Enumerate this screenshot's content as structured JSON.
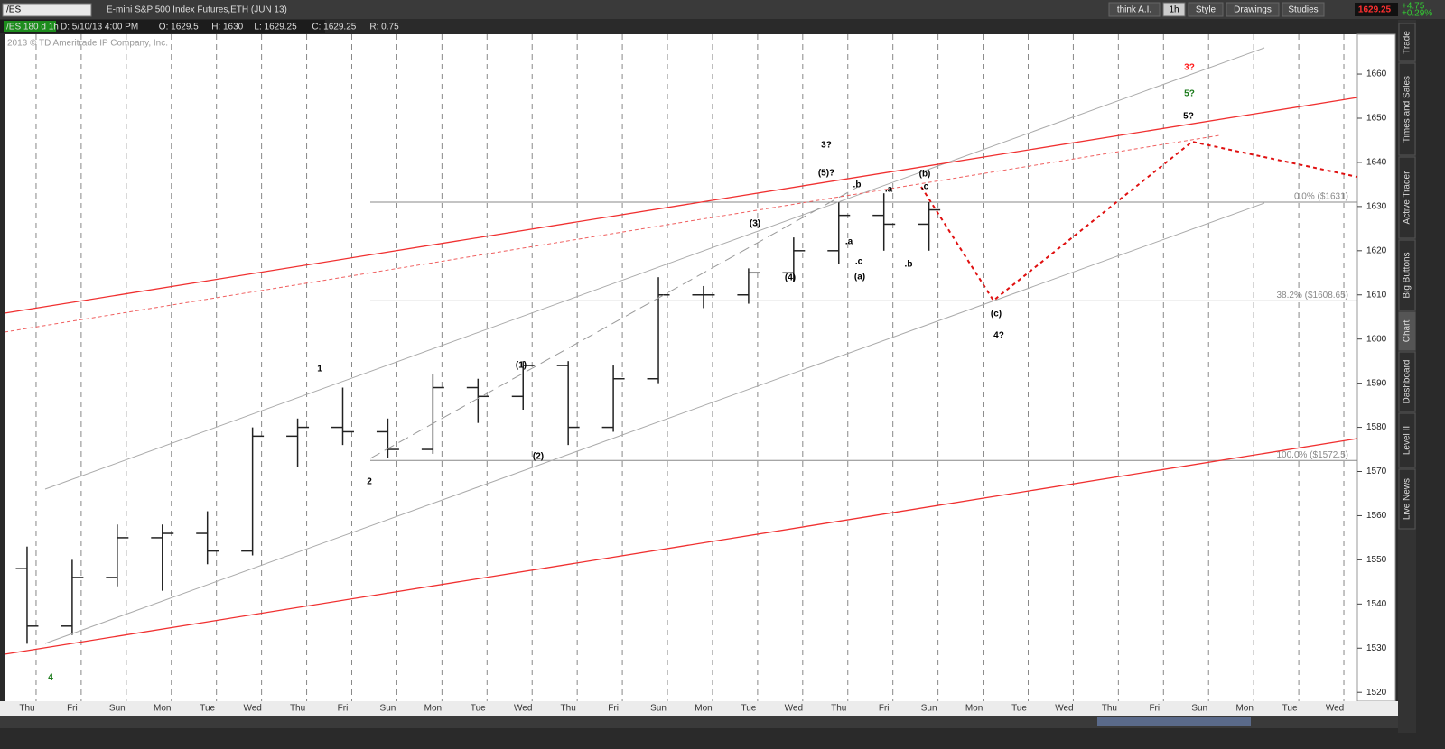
{
  "toolbar": {
    "symbol": "/ES",
    "description": "E-mini S&P 500 Index Futures,ETH (JUN 13)",
    "buttons": [
      "think A.I.",
      "1h",
      "Style",
      "Drawings",
      "Studies"
    ],
    "last": "1629.25",
    "change": "+4.75",
    "change_pct": "+0.29%"
  },
  "info_bar": [
    "/ES 180 d 1h",
    "D: 5/10/13 4:00 PM",
    "O: 1629.5",
    "H: 1630",
    "L: 1629.25",
    "C: 1629.25",
    "R: 0.75"
  ],
  "copyright": "2013 © TD Ameritrade IP Company, Inc.",
  "side_tabs": [
    "Trade",
    "Times and Sales",
    "Active Trader",
    "Big Buttons",
    "Chart",
    "Dashboard",
    "Level II",
    "Live News"
  ],
  "chart_data": {
    "type": "ohlc",
    "color": "#222222",
    "categories": [
      "Thu",
      "Fri",
      "Sun",
      "Mon",
      "Tue",
      "Wed",
      "Thu",
      "Fri",
      "Sun",
      "Mon",
      "Tue",
      "Wed",
      "Thu",
      "Fri",
      "Sun",
      "Mon",
      "Tue",
      "Wed",
      "Thu",
      "Fri",
      "Sun",
      "Mon",
      "Tue",
      "Wed",
      "Thu",
      "Fri",
      "Sun",
      "Mon",
      "Tue",
      "Wed"
    ],
    "open": [
      1548,
      1535,
      1546,
      1555,
      1556,
      1552,
      1578,
      1580,
      1579,
      1575,
      1589,
      1587,
      1594,
      1580,
      1591,
      1610,
      1610,
      1615,
      1620,
      1628,
      1626,
      null,
      null,
      null,
      null,
      null,
      null,
      null,
      null,
      null
    ],
    "high": [
      1553,
      1550,
      1558,
      1558,
      1561,
      1580,
      1582,
      1589,
      1582,
      1592,
      1591,
      1595,
      1595,
      1594,
      1614,
      1612,
      1616,
      1623,
      1631,
      1633,
      1631,
      null,
      null,
      null,
      null,
      null,
      null,
      null,
      null,
      null
    ],
    "low": [
      1531,
      1533,
      1544,
      1543,
      1549,
      1551,
      1571,
      1576,
      1573,
      1574,
      1581,
      1584,
      1576,
      1579,
      1590,
      1607,
      1608,
      1613,
      1617,
      1620,
      1620,
      null,
      null,
      null,
      null,
      null,
      null,
      null,
      null,
      null
    ],
    "close": [
      1535,
      1546,
      1555,
      1556,
      1552,
      1578,
      1580,
      1579,
      1575,
      1589,
      1587,
      1594,
      1580,
      1591,
      1610,
      1610,
      1615,
      1620,
      1628,
      1626,
      1629.25,
      null,
      null,
      null,
      null,
      null,
      null,
      null,
      null,
      null
    ],
    "ylim": [
      1518,
      1669
    ],
    "yticks": [
      1520,
      1530,
      1540,
      1550,
      1560,
      1570,
      1580,
      1590,
      1600,
      1610,
      1620,
      1630,
      1640,
      1650,
      1660
    ],
    "grid": true,
    "fib_levels": [
      {
        "label": "0.0% ($1631)",
        "value": 1631
      },
      {
        "label": "38.2% ($1608.65)",
        "value": 1608.65
      },
      {
        "label": "100.0% ($1572.5)",
        "value": 1572.5
      }
    ],
    "annotations": [
      {
        "text": "4",
        "color": "#1a7a1a"
      },
      {
        "text": "1",
        "color": "#000000"
      },
      {
        "text": "2",
        "color": "#000000"
      },
      {
        "text": "(1)",
        "color": "#000000"
      },
      {
        "text": "(2)",
        "color": "#000000"
      },
      {
        "text": "(3)",
        "color": "#000000"
      },
      {
        "text": "(4)",
        "color": "#000000"
      },
      {
        "text": "(5)?",
        "color": "#000000"
      },
      {
        "text": "3?",
        "color": "#000000"
      },
      {
        "text": ".b",
        "color": "#000000"
      },
      {
        "text": ".a",
        "color": "#000000"
      },
      {
        "text": ".c",
        "color": "#000000"
      },
      {
        "text": "(a)",
        "color": "#000000"
      },
      {
        "text": ".a",
        "color": "#000000"
      },
      {
        "text": ".b",
        "color": "#000000"
      },
      {
        "text": "(b)",
        "color": "#000000"
      },
      {
        "text": ".c",
        "color": "#000000"
      },
      {
        "text": "(c)",
        "color": "#000000"
      },
      {
        "text": "4?",
        "color": "#000000"
      },
      {
        "text": "3?",
        "color": "#ff1a1a"
      },
      {
        "text": "5?",
        "color": "#1a7a1a"
      },
      {
        "text": "5?",
        "color": "#000000"
      }
    ]
  }
}
